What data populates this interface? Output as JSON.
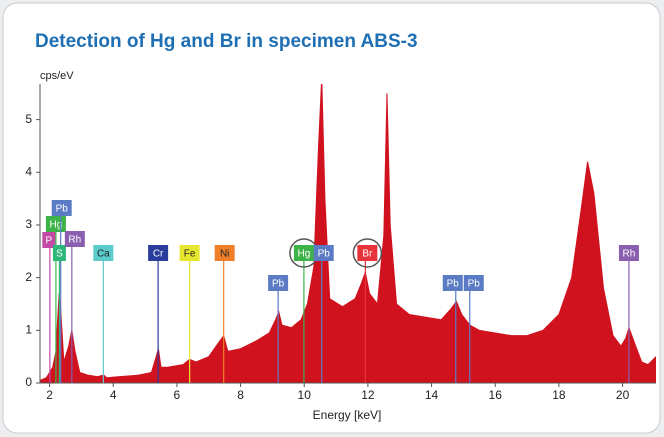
{
  "chart_data": {
    "type": "area",
    "title": "Detection of Hg and Br in specimen ABS-3",
    "y_label": "cps/eV",
    "x_label": "Energy [keV]",
    "color": "#d0121e",
    "x": [
      1.7,
      1.9,
      2.1,
      2.2,
      2.3,
      2.35,
      2.45,
      2.6,
      2.7,
      2.8,
      2.95,
      3.2,
      3.5,
      3.7,
      3.8,
      4.2,
      4.8,
      5.2,
      5.35,
      5.42,
      5.5,
      5.7,
      6.2,
      6.4,
      6.6,
      7.0,
      7.35,
      7.47,
      7.6,
      8.0,
      8.5,
      8.9,
      9.1,
      9.2,
      9.3,
      9.6,
      9.9,
      10.1,
      10.3,
      10.45,
      10.55,
      10.65,
      10.8,
      11.2,
      11.6,
      11.8,
      11.92,
      12.05,
      12.3,
      12.5,
      12.6,
      12.7,
      12.9,
      13.3,
      13.8,
      14.3,
      14.6,
      14.78,
      14.95,
      15.2,
      15.5,
      16,
      16.5,
      17,
      17.5,
      18,
      18.4,
      18.7,
      18.9,
      19.1,
      19.4,
      19.7,
      19.95,
      20.1,
      20.2,
      20.35,
      20.6,
      20.8,
      21.05
    ],
    "values": [
      0.05,
      0.1,
      0.3,
      0.6,
      1.7,
      1.4,
      0.4,
      0.7,
      1.0,
      0.6,
      0.2,
      0.15,
      0.12,
      0.15,
      0.1,
      0.12,
      0.15,
      0.2,
      0.5,
      0.65,
      0.3,
      0.3,
      0.35,
      0.45,
      0.4,
      0.5,
      0.8,
      0.9,
      0.6,
      0.65,
      0.8,
      0.95,
      1.2,
      1.35,
      1.1,
      1.05,
      1.2,
      1.5,
      2.2,
      4.5,
      5.8,
      3.5,
      1.6,
      1.45,
      1.6,
      1.9,
      2.1,
      1.7,
      1.5,
      2.8,
      5.5,
      3.0,
      1.5,
      1.3,
      1.25,
      1.2,
      1.4,
      1.55,
      1.3,
      1.1,
      1.0,
      0.95,
      0.9,
      0.9,
      1.0,
      1.3,
      2.0,
      3.3,
      4.2,
      3.6,
      1.8,
      0.9,
      0.7,
      0.85,
      1.05,
      0.8,
      0.4,
      0.35,
      0.5
    ],
    "xlim": [
      1.7,
      21.05
    ],
    "ylim": [
      0,
      5.6
    ],
    "xticks": [
      2,
      4,
      6,
      8,
      10,
      12,
      14,
      16,
      18,
      20
    ],
    "yticks": [
      0,
      1,
      2,
      3,
      4,
      5
    ],
    "markers": [
      {
        "label": "P",
        "energy": 2.01,
        "color": "#c44aa8"
      },
      {
        "label": "Hg",
        "energy": 2.2,
        "color": "#3db34a"
      },
      {
        "label": "Pb",
        "energy": 2.35,
        "color": "#5b7cc4"
      },
      {
        "label": "S",
        "energy": 2.31,
        "color": "#2db87a"
      },
      {
        "label": "Rh",
        "energy": 2.7,
        "color": "#8a5fb0"
      },
      {
        "label": "Ca",
        "energy": 3.69,
        "color": "#5ccbcb"
      },
      {
        "label": "Cr",
        "energy": 5.41,
        "color": "#2a3c9c"
      },
      {
        "label": "Fe",
        "energy": 6.4,
        "color": "#e6e62e"
      },
      {
        "label": "Ni",
        "energy": 7.47,
        "color": "#f07f2a"
      },
      {
        "label": "Pb",
        "energy": 9.18,
        "color": "#5b7cc4"
      },
      {
        "label": "Hg",
        "energy": 9.99,
        "color": "#3db34a",
        "circled": true
      },
      {
        "label": "Pb",
        "energy": 10.55,
        "color": "#5b7cc4"
      },
      {
        "label": "Br",
        "energy": 11.92,
        "color": "#e8323c",
        "circled": true
      },
      {
        "label": "Pb",
        "energy": 14.76,
        "color": "#5b7cc4"
      },
      {
        "label": "Pb",
        "energy": 15.2,
        "color": "#5b7cc4"
      },
      {
        "label": "Rh",
        "energy": 20.2,
        "color": "#8a5fb0"
      }
    ]
  }
}
